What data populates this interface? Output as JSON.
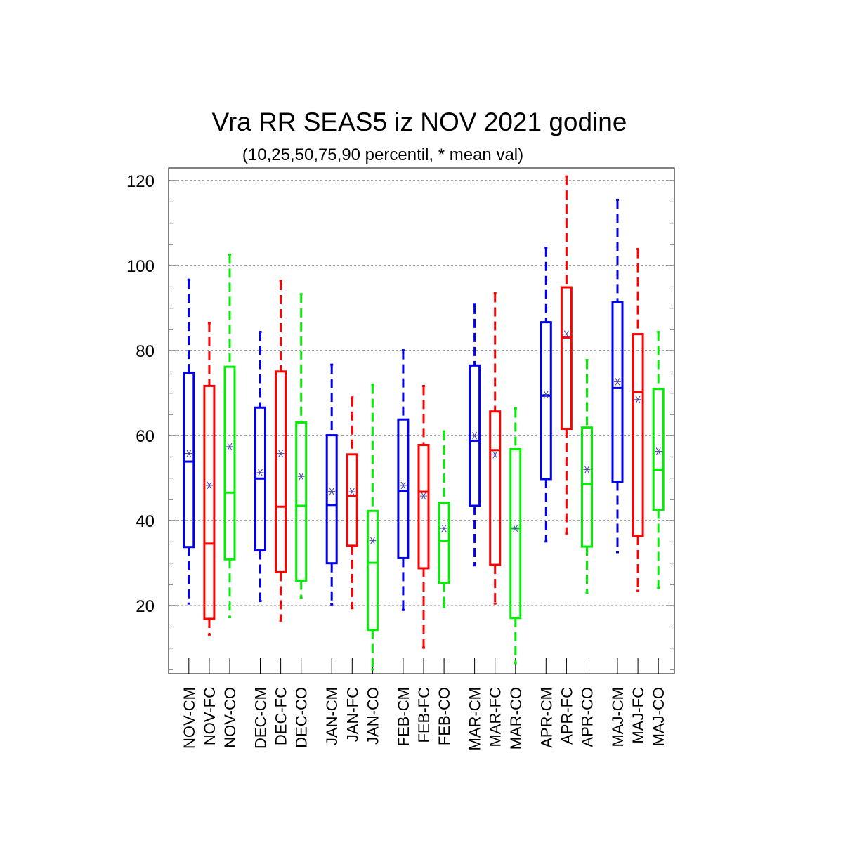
{
  "chart_data": {
    "type": "boxplot",
    "title": "Vra RR SEAS5 iz NOV 2021 godine",
    "subtitle": "(10,25,50,75,90 percentil, * mean val)",
    "ylim": [
      4,
      123
    ],
    "yticks": [
      20,
      40,
      60,
      80,
      100,
      120
    ],
    "grid": "horizontal dashed at major ticks",
    "colors": {
      "CM": "#0000ee",
      "FC": "#ff0000",
      "CO": "#00ee00",
      "mean_marker": "#4444aa"
    },
    "groups": [
      "NOV",
      "DEC",
      "JAN",
      "FEB",
      "MAR",
      "APR",
      "MAJ"
    ],
    "boxes": [
      {
        "label": "NOV-CM",
        "group": 0,
        "kind": "CM",
        "p10": 20.5,
        "p25": 33.8,
        "p50": 53.9,
        "p75": 74.8,
        "p90": 96.7,
        "mean": 55.8
      },
      {
        "label": "NOV-FC",
        "group": 0,
        "kind": "FC",
        "p10": 13.2,
        "p25": 16.9,
        "p50": 34.6,
        "p75": 71.7,
        "p90": 86.5,
        "mean": 48.3
      },
      {
        "label": "NOV-CO",
        "group": 0,
        "kind": "CO",
        "p10": 17.3,
        "p25": 30.9,
        "p50": 46.6,
        "p75": 76.2,
        "p90": 102.6,
        "mean": 57.4
      },
      {
        "label": "DEC-CM",
        "group": 1,
        "kind": "CM",
        "p10": 21.1,
        "p25": 33.0,
        "p50": 49.9,
        "p75": 66.6,
        "p90": 84.4,
        "mean": 51.3
      },
      {
        "label": "DEC-FC",
        "group": 1,
        "kind": "FC",
        "p10": 16.5,
        "p25": 27.9,
        "p50": 43.3,
        "p75": 75.1,
        "p90": 96.4,
        "mean": 55.8
      },
      {
        "label": "DEC-CO",
        "group": 1,
        "kind": "CO",
        "p10": 21.9,
        "p25": 25.9,
        "p50": 43.5,
        "p75": 63.1,
        "p90": 93.3,
        "mean": 50.4
      },
      {
        "label": "JAN-CM",
        "group": 2,
        "kind": "CM",
        "p10": 20.3,
        "p25": 30.0,
        "p50": 43.7,
        "p75": 60.1,
        "p90": 76.7,
        "mean": 46.9
      },
      {
        "label": "JAN-FC",
        "group": 2,
        "kind": "FC",
        "p10": 19.4,
        "p25": 34.1,
        "p50": 45.9,
        "p75": 55.6,
        "p90": 69.0,
        "mean": 46.8
      },
      {
        "label": "JAN-CO",
        "group": 2,
        "kind": "CO",
        "p10": 5.0,
        "p25": 14.3,
        "p50": 30.1,
        "p75": 42.3,
        "p90": 72.0,
        "mean": 35.3
      },
      {
        "label": "FEB-CM",
        "group": 3,
        "kind": "CM",
        "p10": 19.0,
        "p25": 31.2,
        "p50": 47.0,
        "p75": 63.8,
        "p90": 80.1,
        "mean": 48.3
      },
      {
        "label": "FEB-FC",
        "group": 3,
        "kind": "FC",
        "p10": 10.1,
        "p25": 28.8,
        "p50": 46.8,
        "p75": 57.8,
        "p90": 71.7,
        "mean": 45.8
      },
      {
        "label": "FEB-CO",
        "group": 3,
        "kind": "CO",
        "p10": 19.7,
        "p25": 25.4,
        "p50": 35.3,
        "p75": 44.2,
        "p90": 61.0,
        "mean": 38.2
      },
      {
        "label": "MAR-CM",
        "group": 4,
        "kind": "CM",
        "p10": 29.5,
        "p25": 43.5,
        "p50": 58.8,
        "p75": 76.5,
        "p90": 90.8,
        "mean": 60.0
      },
      {
        "label": "MAR-FC",
        "group": 4,
        "kind": "FC",
        "p10": 20.5,
        "p25": 29.6,
        "p50": 56.6,
        "p75": 65.7,
        "p90": 93.5,
        "mean": 55.5
      },
      {
        "label": "MAR-CO",
        "group": 4,
        "kind": "CO",
        "p10": 6.5,
        "p25": 17.1,
        "p50": 38.2,
        "p75": 56.8,
        "p90": 66.4,
        "mean": 38.2
      },
      {
        "label": "APR-CM",
        "group": 5,
        "kind": "CM",
        "p10": 35.1,
        "p25": 49.8,
        "p50": 69.4,
        "p75": 86.7,
        "p90": 104.2,
        "mean": 69.7
      },
      {
        "label": "APR-FC",
        "group": 5,
        "kind": "FC",
        "p10": 37.0,
        "p25": 61.6,
        "p50": 83.1,
        "p75": 94.9,
        "p90": 121.0,
        "mean": 83.9
      },
      {
        "label": "APR-CO",
        "group": 5,
        "kind": "CO",
        "p10": 23.1,
        "p25": 33.9,
        "p50": 48.6,
        "p75": 61.9,
        "p90": 77.8,
        "mean": 52.0
      },
      {
        "label": "MAJ-CM",
        "group": 6,
        "kind": "CM",
        "p10": 32.6,
        "p25": 49.2,
        "p50": 71.2,
        "p75": 91.4,
        "p90": 115.5,
        "mean": 72.7
      },
      {
        "label": "MAJ-FC",
        "group": 6,
        "kind": "FC",
        "p10": 23.5,
        "p25": 36.4,
        "p50": 70.3,
        "p75": 83.9,
        "p90": 103.9,
        "mean": 68.5
      },
      {
        "label": "MAJ-CO",
        "group": 6,
        "kind": "CO",
        "p10": 24.2,
        "p25": 42.6,
        "p50": 52.0,
        "p75": 71.0,
        "p90": 84.4,
        "mean": 56.3
      }
    ]
  }
}
